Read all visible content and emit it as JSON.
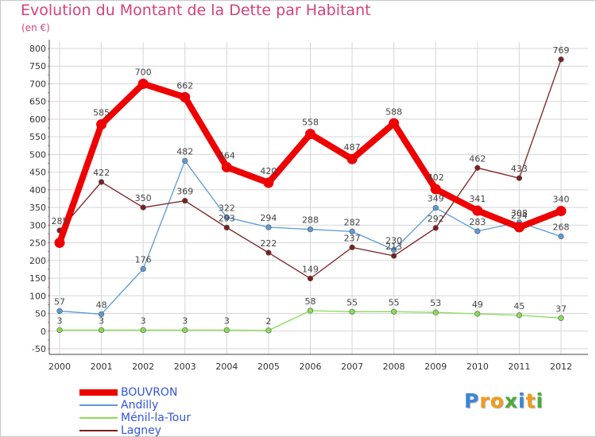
{
  "header": {
    "title": "Evolution du Montant de la Dette par Habitant",
    "subtitle": "(en €)"
  },
  "colors": {
    "title": "#d4417a",
    "grid": "#d6d6d6",
    "axis": "#333333",
    "legend_text": "#3355dd"
  },
  "chart_data": {
    "type": "line",
    "x": [
      "2000",
      "2001",
      "2002",
      "2003",
      "2004",
      "2005",
      "2006",
      "2007",
      "2008",
      "2009",
      "2010",
      "2011",
      "2012"
    ],
    "yticks": [
      -50,
      0,
      50,
      100,
      150,
      200,
      250,
      300,
      350,
      400,
      450,
      500,
      550,
      600,
      650,
      700,
      750,
      800
    ],
    "ylim": [
      -50,
      800
    ],
    "grid": true,
    "legend_position": "bottom-left",
    "series": [
      {
        "name": "BOUVRON",
        "color": "#ee0000",
        "values": [
          250,
          585,
          700,
          662,
          464,
          420,
          558,
          487,
          588,
          402,
          341,
          294,
          340
        ],
        "labels": [
          "",
          "585",
          "700",
          "662",
          "464",
          "420",
          "558",
          "487",
          "588",
          "402",
          "341",
          "294",
          "340"
        ]
      },
      {
        "name": "Andilly",
        "color": "#5b9bd5",
        "values": [
          57,
          48,
          176,
          482,
          322,
          294,
          288,
          282,
          230,
          349,
          283,
          308,
          268
        ],
        "labels": [
          "57",
          "48",
          "176",
          "482",
          "322",
          "294",
          "288",
          "282",
          "230",
          "349",
          "283",
          "308",
          "268"
        ]
      },
      {
        "name": "Ménil-la-Tour",
        "color": "#88dd55",
        "values": [
          3,
          3,
          3,
          3,
          3,
          2,
          58,
          55,
          55,
          53,
          49,
          45,
          37
        ],
        "labels": [
          "3",
          "3",
          "3",
          "3",
          "3",
          "2",
          "58",
          "55",
          "55",
          "53",
          "49",
          "45",
          "37"
        ]
      },
      {
        "name": "Lagney",
        "color": "#7a1f1f",
        "values": [
          285,
          422,
          350,
          369,
          293,
          222,
          149,
          237,
          213,
          292,
          462,
          433,
          769
        ],
        "labels": [
          "285",
          "422",
          "350",
          "369",
          "293",
          "222",
          "149",
          "237",
          "213",
          "292",
          "462",
          "433",
          "769"
        ]
      }
    ]
  },
  "legend": {
    "items": [
      {
        "label": "BOUVRON",
        "color": "#ee0000",
        "thickness": 8
      },
      {
        "label": "Andilly",
        "color": "#5b9bd5",
        "thickness": 2
      },
      {
        "label": "Ménil-la-Tour",
        "color": "#88dd55",
        "thickness": 2
      },
      {
        "label": "Lagney",
        "color": "#7a1f1f",
        "thickness": 2
      }
    ]
  },
  "logo": {
    "letters": [
      {
        "ch": "P",
        "color": "#3a86d6"
      },
      {
        "ch": "r",
        "color": "#f29a1a"
      },
      {
        "ch": "o",
        "color": "#f29a1a"
      },
      {
        "ch": "x",
        "color": "#4aaa3a"
      },
      {
        "ch": "i",
        "color": "#3a86d6"
      },
      {
        "ch": "t",
        "color": "#f29a1a"
      },
      {
        "ch": "i",
        "color": "#4aaa3a"
      }
    ]
  }
}
